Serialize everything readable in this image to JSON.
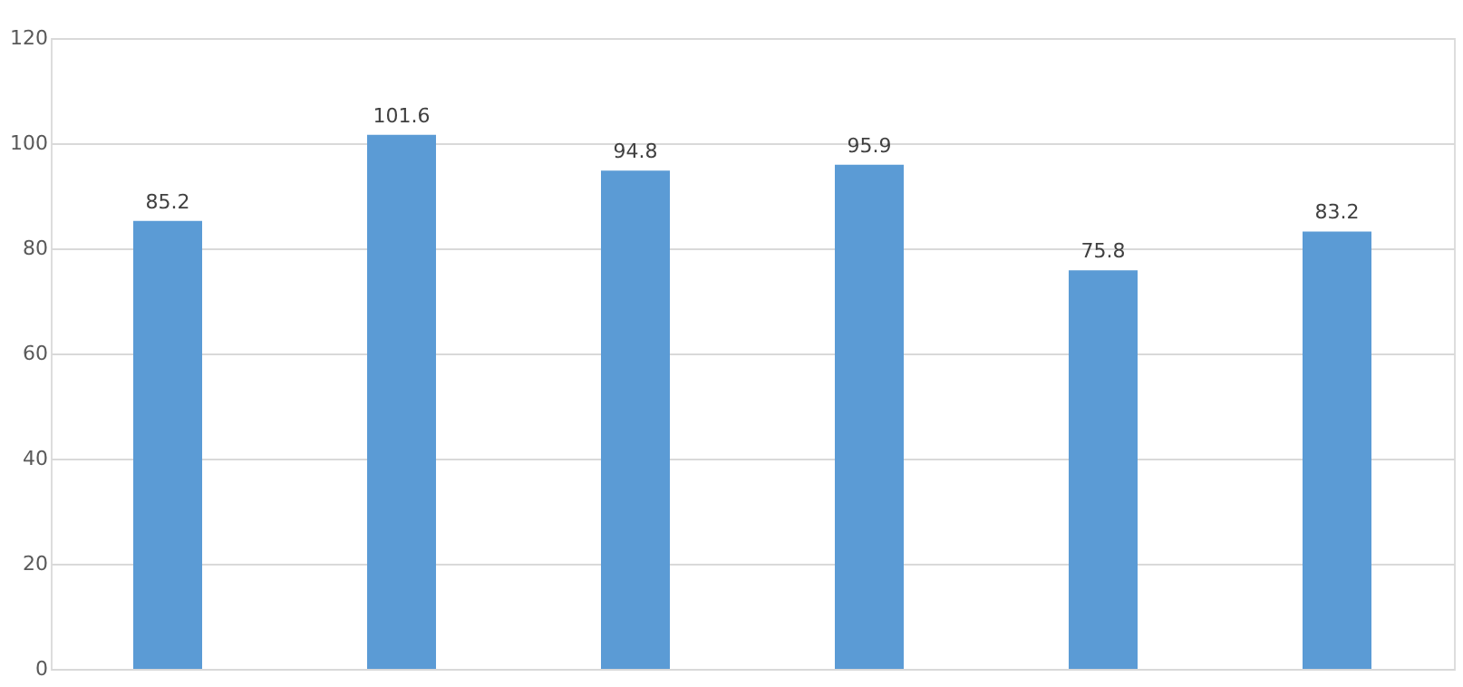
{
  "chart_data": {
    "type": "bar",
    "categories": [
      null,
      null,
      null,
      null,
      null,
      null
    ],
    "values": [
      85.2,
      101.6,
      94.8,
      95.9,
      75.8,
      83.2
    ],
    "color": "#5b9bd5",
    "ylim": [
      0,
      120
    ],
    "yticks": [
      0,
      20,
      40,
      60,
      80,
      100,
      120
    ],
    "grid": "y",
    "data_labels": true,
    "tick_labels": "y"
  }
}
